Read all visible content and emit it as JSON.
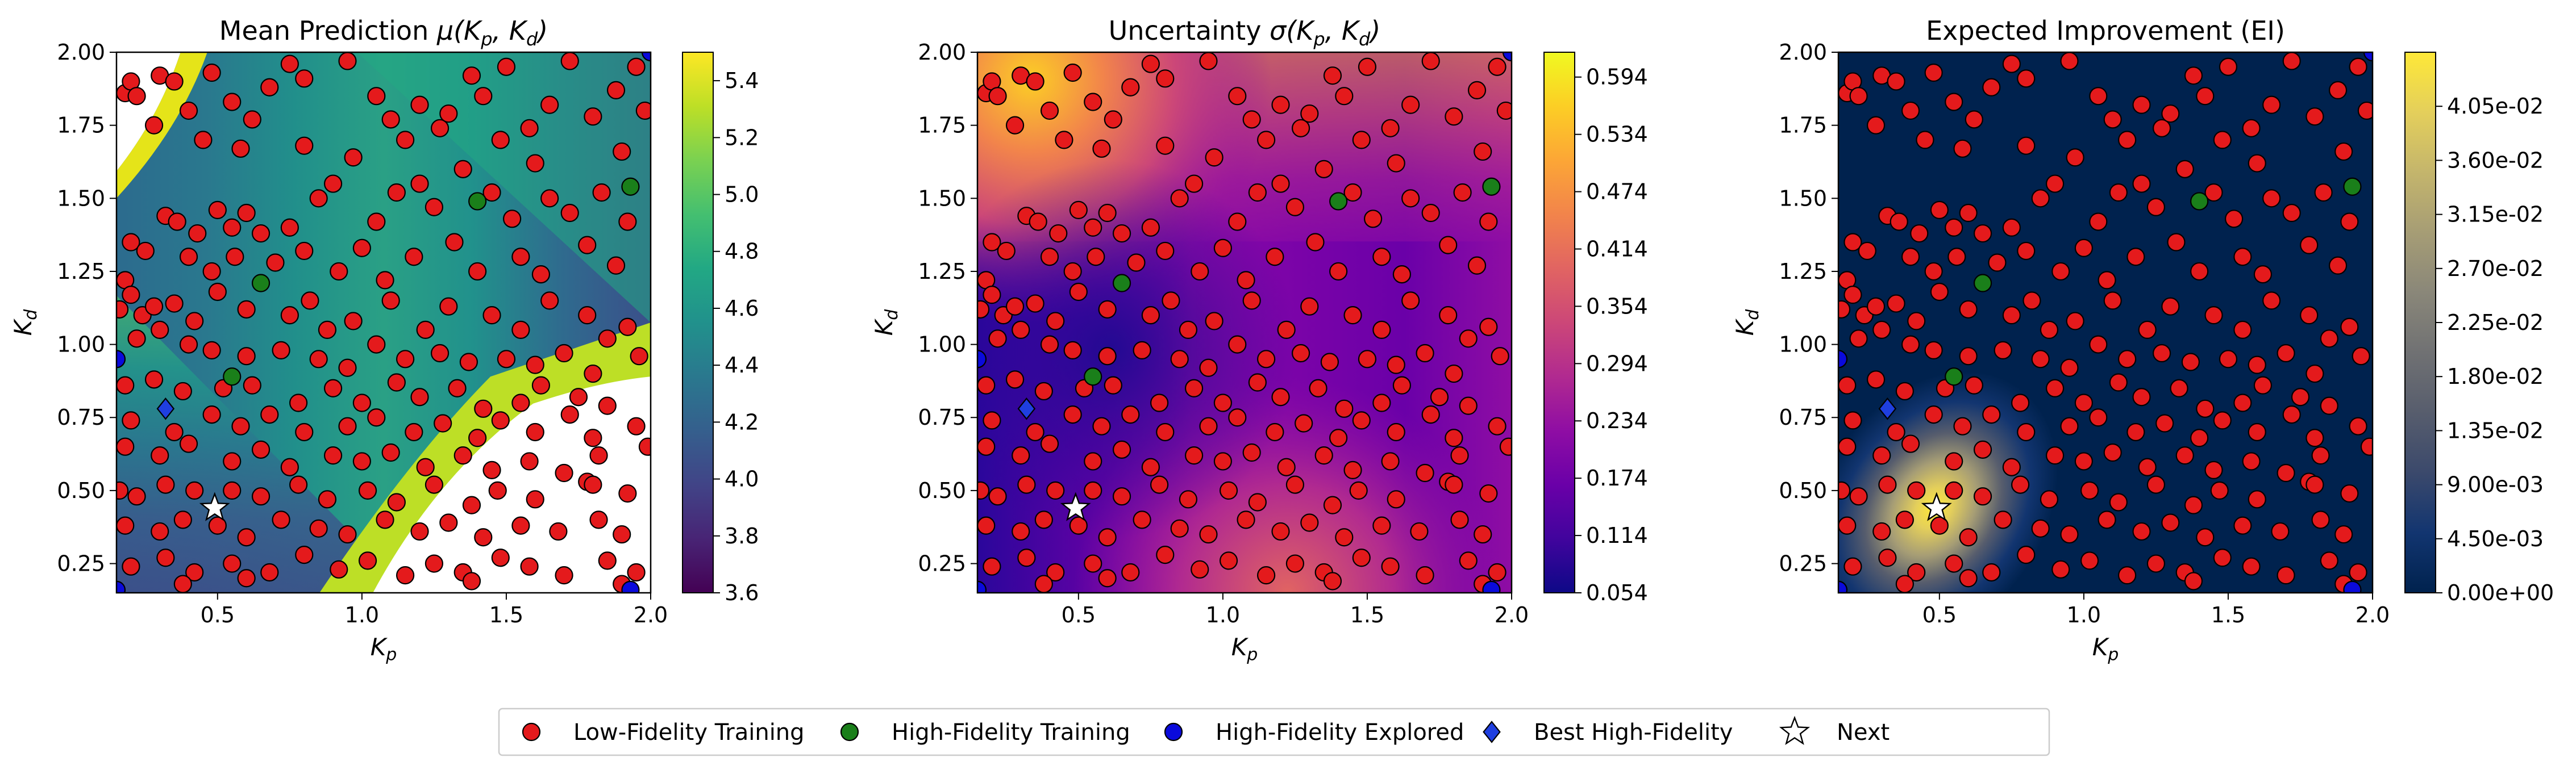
{
  "legend": {
    "placement": "bottom-center",
    "entries": [
      {
        "label": "Low-Fidelity Training",
        "marker": "circle",
        "color": "#e41a1c"
      },
      {
        "label": "High-Fidelity Training",
        "marker": "circle",
        "color": "#1a7f1a"
      },
      {
        "label": "High-Fidelity Explored",
        "marker": "circle",
        "color": "#0a0adc"
      },
      {
        "label": "Best High-Fidelity",
        "marker": "diamond",
        "color": "#1f3fe0"
      },
      {
        "label": "Next",
        "marker": "star",
        "color": "#ffffff"
      }
    ]
  },
  "chart_data": [
    {
      "type": "heatmap",
      "title": "Mean Prediction μ(K_p, K_d)",
      "xlabel": "K_p",
      "ylabel": "K_d",
      "xlim": [
        0.15,
        2.0
      ],
      "ylim": [
        0.15,
        2.0
      ],
      "xticks": [
        "0.5",
        "1.0",
        "1.5",
        "2.0"
      ],
      "yticks": [
        "0.25",
        "0.50",
        "0.75",
        "1.00",
        "1.25",
        "1.50",
        "1.75",
        "2.00"
      ],
      "colormap": "viridis",
      "colorbar_range": [
        3.6,
        5.5
      ],
      "colorbar_ticks": [
        "3.6",
        "3.8",
        "4.0",
        "4.2",
        "4.4",
        "4.6",
        "4.8",
        "5.0",
        "5.2",
        "5.4"
      ],
      "note": "values above colorbar range shown as white (top-left corner and lower-right region)"
    },
    {
      "type": "heatmap",
      "title": "Uncertainty σ(K_p, K_d)",
      "xlabel": "K_p",
      "ylabel": "K_d",
      "xlim": [
        0.15,
        2.0
      ],
      "ylim": [
        0.15,
        2.0
      ],
      "xticks": [
        "0.5",
        "1.0",
        "1.5",
        "2.0"
      ],
      "yticks": [
        "0.25",
        "0.50",
        "0.75",
        "1.00",
        "1.25",
        "1.50",
        "1.75",
        "2.00"
      ],
      "colormap": "plasma",
      "colorbar_range": [
        0.054,
        0.62
      ],
      "colorbar_ticks": [
        "0.054",
        "0.114",
        "0.174",
        "0.234",
        "0.294",
        "0.354",
        "0.414",
        "0.474",
        "0.534",
        "0.594"
      ]
    },
    {
      "type": "heatmap",
      "title": "Expected Improvement (EI)",
      "xlabel": "K_p",
      "ylabel": "K_d",
      "xlim": [
        0.15,
        2.0
      ],
      "ylim": [
        0.15,
        2.0
      ],
      "xticks": [
        "0.5",
        "1.0",
        "1.5",
        "2.0"
      ],
      "yticks": [
        "0.25",
        "0.50",
        "0.75",
        "1.00",
        "1.25",
        "1.50",
        "1.75",
        "2.00"
      ],
      "colormap": "cividis",
      "colorbar_range": [
        0.0,
        0.045
      ],
      "colorbar_ticks": [
        "0.00e+00",
        "4.50e-03",
        "9.00e-03",
        "1.35e-02",
        "1.80e-02",
        "2.25e-02",
        "2.70e-02",
        "3.15e-02",
        "3.60e-02",
        "4.05e-02"
      ],
      "peak": {
        "x": 0.48,
        "y": 0.44
      }
    }
  ],
  "scatter_points": {
    "low_fidelity_training": [
      [
        0.18,
        1.86
      ],
      [
        0.2,
        1.9
      ],
      [
        0.22,
        1.85
      ],
      [
        0.3,
        1.92
      ],
      [
        0.35,
        1.9
      ],
      [
        0.28,
        1.75
      ],
      [
        0.4,
        1.8
      ],
      [
        0.48,
        1.93
      ],
      [
        0.55,
        1.83
      ],
      [
        0.62,
        1.77
      ],
      [
        0.68,
        1.88
      ],
      [
        0.75,
        1.96
      ],
      [
        0.8,
        1.91
      ],
      [
        0.95,
        1.97
      ],
      [
        1.05,
        1.85
      ],
      [
        1.1,
        1.77
      ],
      [
        1.2,
        1.82
      ],
      [
        1.27,
        1.74
      ],
      [
        1.3,
        1.79
      ],
      [
        1.38,
        1.92
      ],
      [
        1.42,
        1.85
      ],
      [
        1.5,
        1.95
      ],
      [
        1.58,
        1.74
      ],
      [
        1.65,
        1.82
      ],
      [
        1.72,
        1.97
      ],
      [
        1.8,
        1.78
      ],
      [
        1.88,
        1.87
      ],
      [
        1.95,
        1.95
      ],
      [
        0.45,
        1.7
      ],
      [
        0.58,
        1.67
      ],
      [
        0.8,
        1.68
      ],
      [
        0.97,
        1.64
      ],
      [
        1.15,
        1.7
      ],
      [
        1.35,
        1.6
      ],
      [
        1.48,
        1.7
      ],
      [
        1.6,
        1.62
      ],
      [
        1.9,
        1.66
      ],
      [
        1.98,
        1.8
      ],
      [
        0.32,
        1.44
      ],
      [
        0.36,
        1.42
      ],
      [
        0.43,
        1.38
      ],
      [
        0.5,
        1.46
      ],
      [
        0.55,
        1.4
      ],
      [
        0.6,
        1.45
      ],
      [
        0.65,
        1.38
      ],
      [
        0.75,
        1.4
      ],
      [
        0.85,
        1.5
      ],
      [
        0.9,
        1.55
      ],
      [
        1.05,
        1.42
      ],
      [
        1.12,
        1.52
      ],
      [
        1.2,
        1.55
      ],
      [
        1.25,
        1.47
      ],
      [
        1.45,
        1.52
      ],
      [
        1.52,
        1.43
      ],
      [
        1.65,
        1.5
      ],
      [
        1.72,
        1.45
      ],
      [
        1.83,
        1.52
      ],
      [
        1.92,
        1.42
      ],
      [
        0.2,
        1.35
      ],
      [
        0.25,
        1.32
      ],
      [
        0.4,
        1.3
      ],
      [
        0.48,
        1.25
      ],
      [
        0.56,
        1.3
      ],
      [
        0.7,
        1.28
      ],
      [
        0.8,
        1.32
      ],
      [
        0.92,
        1.25
      ],
      [
        1.0,
        1.33
      ],
      [
        1.08,
        1.22
      ],
      [
        1.18,
        1.3
      ],
      [
        1.32,
        1.35
      ],
      [
        1.4,
        1.25
      ],
      [
        1.55,
        1.3
      ],
      [
        1.62,
        1.24
      ],
      [
        1.78,
        1.34
      ],
      [
        1.88,
        1.27
      ],
      [
        0.18,
        1.22
      ],
      [
        0.2,
        1.17
      ],
      [
        0.24,
        1.1
      ],
      [
        0.28,
        1.13
      ],
      [
        0.35,
        1.14
      ],
      [
        0.42,
        1.08
      ],
      [
        0.5,
        1.18
      ],
      [
        0.6,
        1.12
      ],
      [
        0.75,
        1.1
      ],
      [
        0.82,
        1.15
      ],
      [
        0.88,
        1.05
      ],
      [
        0.97,
        1.08
      ],
      [
        1.1,
        1.15
      ],
      [
        1.22,
        1.05
      ],
      [
        1.3,
        1.13
      ],
      [
        1.45,
        1.1
      ],
      [
        1.55,
        1.05
      ],
      [
        1.65,
        1.15
      ],
      [
        1.78,
        1.1
      ],
      [
        1.85,
        1.02
      ],
      [
        1.92,
        1.06
      ],
      [
        0.16,
        1.12
      ],
      [
        0.22,
        1.02
      ],
      [
        0.3,
        1.05
      ],
      [
        0.4,
        1.0
      ],
      [
        0.48,
        0.98
      ],
      [
        0.6,
        0.96
      ],
      [
        0.72,
        0.98
      ],
      [
        0.85,
        0.95
      ],
      [
        0.95,
        0.92
      ],
      [
        1.05,
        1.0
      ],
      [
        1.15,
        0.95
      ],
      [
        1.27,
        0.97
      ],
      [
        1.37,
        0.94
      ],
      [
        1.5,
        0.95
      ],
      [
        1.6,
        0.93
      ],
      [
        1.7,
        0.97
      ],
      [
        1.8,
        0.9
      ],
      [
        1.96,
        0.96
      ],
      [
        0.18,
        0.86
      ],
      [
        0.28,
        0.88
      ],
      [
        0.38,
        0.84
      ],
      [
        0.52,
        0.85
      ],
      [
        0.62,
        0.86
      ],
      [
        0.78,
        0.8
      ],
      [
        0.9,
        0.85
      ],
      [
        1.0,
        0.8
      ],
      [
        1.12,
        0.87
      ],
      [
        1.2,
        0.82
      ],
      [
        1.33,
        0.85
      ],
      [
        1.42,
        0.78
      ],
      [
        1.55,
        0.8
      ],
      [
        1.62,
        0.86
      ],
      [
        1.75,
        0.82
      ],
      [
        1.85,
        0.79
      ],
      [
        0.2,
        0.74
      ],
      [
        0.35,
        0.7
      ],
      [
        0.48,
        0.76
      ],
      [
        0.58,
        0.72
      ],
      [
        0.68,
        0.76
      ],
      [
        0.8,
        0.7
      ],
      [
        0.95,
        0.72
      ],
      [
        1.05,
        0.75
      ],
      [
        1.18,
        0.7
      ],
      [
        1.28,
        0.73
      ],
      [
        1.4,
        0.68
      ],
      [
        1.48,
        0.74
      ],
      [
        1.6,
        0.7
      ],
      [
        1.72,
        0.76
      ],
      [
        1.8,
        0.68
      ],
      [
        1.95,
        0.72
      ],
      [
        0.18,
        0.65
      ],
      [
        0.3,
        0.62
      ],
      [
        0.4,
        0.66
      ],
      [
        0.55,
        0.6
      ],
      [
        0.65,
        0.64
      ],
      [
        0.75,
        0.58
      ],
      [
        0.9,
        0.62
      ],
      [
        1.0,
        0.6
      ],
      [
        1.1,
        0.63
      ],
      [
        1.22,
        0.58
      ],
      [
        1.35,
        0.62
      ],
      [
        1.45,
        0.57
      ],
      [
        1.58,
        0.6
      ],
      [
        1.7,
        0.56
      ],
      [
        1.82,
        0.62
      ],
      [
        1.99,
        0.65
      ],
      [
        0.16,
        0.5
      ],
      [
        0.22,
        0.48
      ],
      [
        0.32,
        0.52
      ],
      [
        0.42,
        0.5
      ],
      [
        0.55,
        0.5
      ],
      [
        0.65,
        0.48
      ],
      [
        0.78,
        0.52
      ],
      [
        0.88,
        0.47
      ],
      [
        1.02,
        0.5
      ],
      [
        1.12,
        0.46
      ],
      [
        1.25,
        0.52
      ],
      [
        1.38,
        0.45
      ],
      [
        1.47,
        0.5
      ],
      [
        1.6,
        0.47
      ],
      [
        1.78,
        0.53
      ],
      [
        1.8,
        0.52
      ],
      [
        1.92,
        0.49
      ],
      [
        0.18,
        0.38
      ],
      [
        0.3,
        0.36
      ],
      [
        0.38,
        0.4
      ],
      [
        0.5,
        0.38
      ],
      [
        0.6,
        0.34
      ],
      [
        0.72,
        0.4
      ],
      [
        0.85,
        0.37
      ],
      [
        0.95,
        0.35
      ],
      [
        1.08,
        0.4
      ],
      [
        1.2,
        0.36
      ],
      [
        1.3,
        0.39
      ],
      [
        1.42,
        0.34
      ],
      [
        1.55,
        0.38
      ],
      [
        1.68,
        0.36
      ],
      [
        1.82,
        0.4
      ],
      [
        1.9,
        0.35
      ],
      [
        0.2,
        0.24
      ],
      [
        0.32,
        0.27
      ],
      [
        0.42,
        0.22
      ],
      [
        0.55,
        0.25
      ],
      [
        0.68,
        0.22
      ],
      [
        0.8,
        0.28
      ],
      [
        0.92,
        0.23
      ],
      [
        1.02,
        0.26
      ],
      [
        1.15,
        0.21
      ],
      [
        1.25,
        0.25
      ],
      [
        1.35,
        0.22
      ],
      [
        1.48,
        0.27
      ],
      [
        1.58,
        0.24
      ],
      [
        1.7,
        0.21
      ],
      [
        1.85,
        0.26
      ],
      [
        1.95,
        0.22
      ],
      [
        0.38,
        0.18
      ],
      [
        0.6,
        0.2
      ],
      [
        1.38,
        0.19
      ],
      [
        1.9,
        0.18
      ]
    ],
    "high_fidelity_training": [
      [
        1.4,
        1.49
      ],
      [
        0.65,
        1.21
      ],
      [
        0.55,
        0.89
      ],
      [
        1.93,
        1.54
      ]
    ],
    "high_fidelity_explored": [
      [
        0.15,
        0.95
      ],
      [
        1.93,
        0.16
      ],
      [
        0.15,
        0.16
      ],
      [
        2.0,
        2.0
      ]
    ],
    "best_high_fidelity": [
      [
        0.32,
        0.78
      ]
    ],
    "next": [
      [
        0.49,
        0.44
      ]
    ]
  }
}
